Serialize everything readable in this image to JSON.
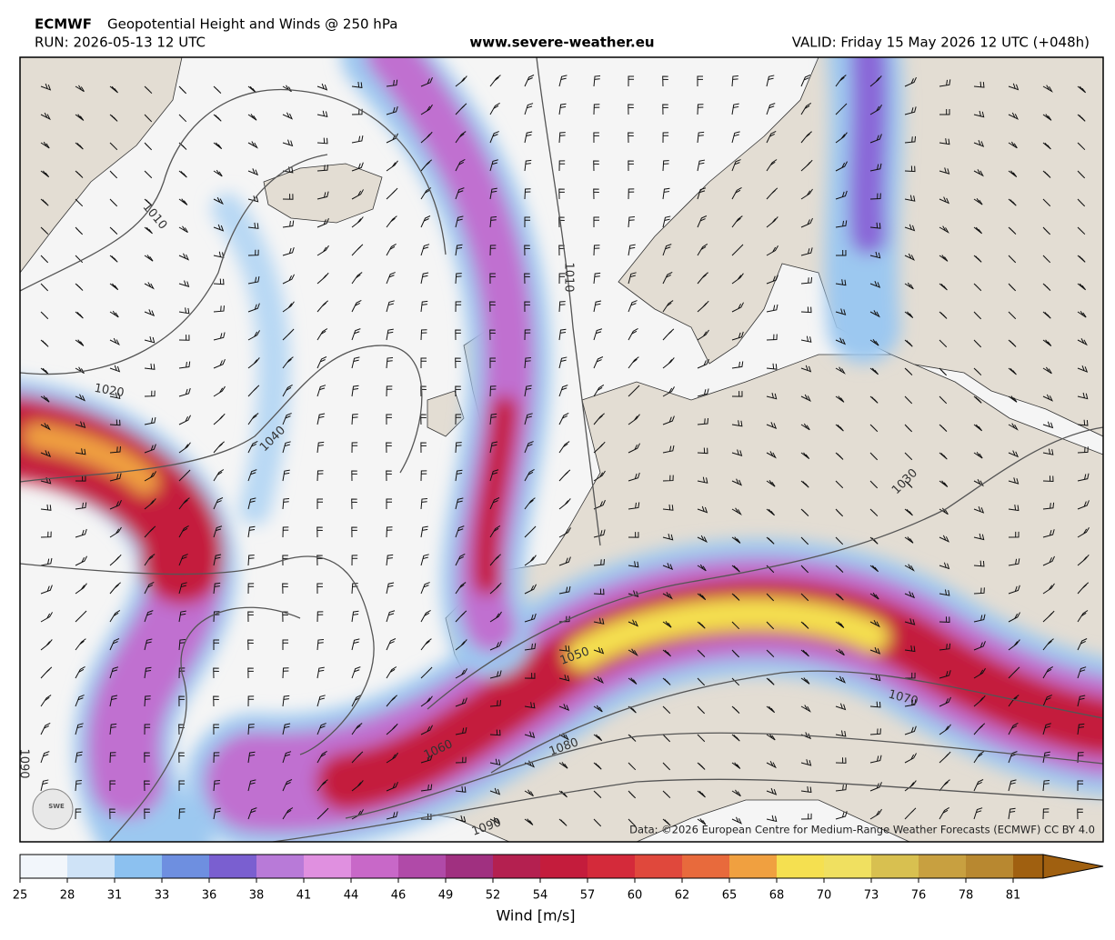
{
  "header": {
    "model": "ECMWF",
    "title": "Geopotential Height and Winds @ 250 hPa",
    "run": "RUN: 2026-05-13 12 UTC",
    "website": "www.severe-weather.eu",
    "valid": "VALID: Friday 15 May 2026 12 UTC (+048h)"
  },
  "map": {
    "contour_labels": [
      "1010",
      "1020",
      "1040",
      "1010",
      "1030",
      "1050",
      "1060",
      "1070",
      "1080",
      "1090",
      "1090"
    ],
    "credit": "Data: ©2026 European Centre for Medium-Range Weather Forecasts (ECMWF) CC BY 4.0",
    "logo": "SWE"
  },
  "colorbar": {
    "ticks": [
      25,
      28,
      31,
      33,
      36,
      38,
      41,
      44,
      46,
      49,
      52,
      54,
      57,
      60,
      62,
      65,
      68,
      70,
      73,
      76,
      78,
      81
    ],
    "label": "Wind [m/s]",
    "colors": [
      "#f2f6fb",
      "#cfe3f7",
      "#8cc1f0",
      "#6e8fe0",
      "#7a5fd0",
      "#b87ad8",
      "#e090e0",
      "#c868c8",
      "#b04aa8",
      "#a03080",
      "#b42050",
      "#c41c3c",
      "#d42a3a",
      "#e0483c",
      "#e86a3c",
      "#f0a040",
      "#f5e050",
      "#f0e060",
      "#d8c050",
      "#c8a040",
      "#b88830",
      "#a06010"
    ]
  }
}
